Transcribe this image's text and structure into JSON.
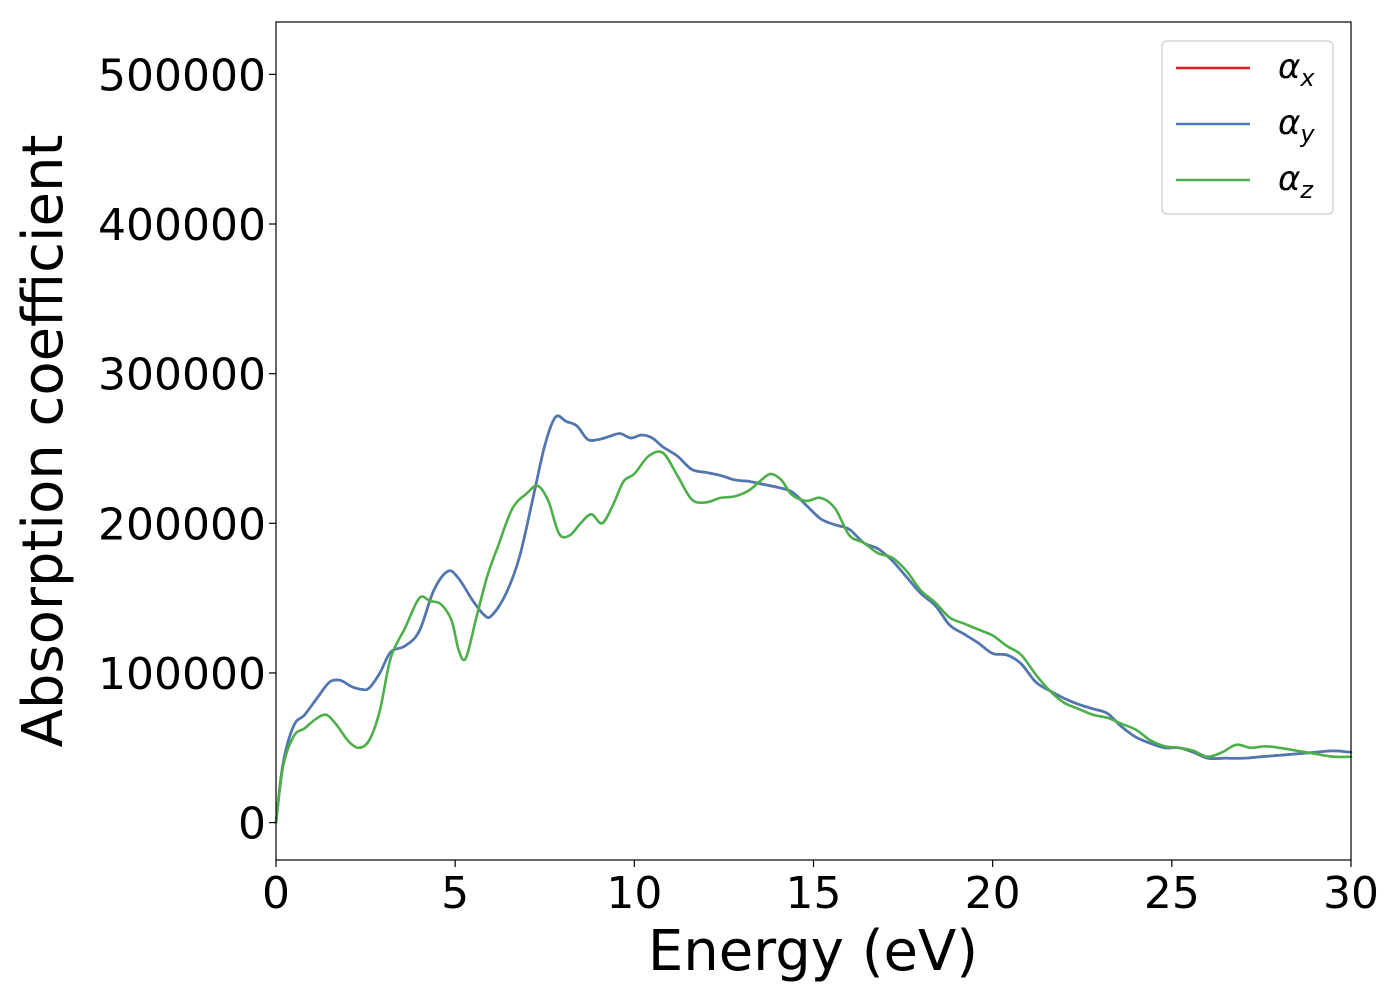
{
  "chart_data": {
    "type": "line",
    "title": "",
    "xlabel": "Energy (eV)",
    "ylabel": "Absorption coefficient",
    "xlim": [
      0,
      30
    ],
    "ylim": [
      -25000,
      535000
    ],
    "xticks": [
      0,
      5,
      10,
      15,
      20,
      25,
      30
    ],
    "yticks": [
      0,
      100000,
      200000,
      300000,
      400000,
      500000
    ],
    "grid": false,
    "legend_position": "top-right",
    "series": [
      {
        "name": "α",
        "subscript": "x",
        "color": "#e41a1c",
        "x": [
          0,
          0.2,
          0.5,
          0.8,
          1.2,
          1.5,
          1.8,
          2.1,
          2.4,
          2.6,
          2.9,
          3.2,
          3.6,
          4.0,
          4.4,
          4.8,
          5.1,
          5.5,
          5.8,
          6.0,
          6.4,
          6.8,
          7.2,
          7.5,
          7.8,
          8.1,
          8.4,
          8.7,
          9.0,
          9.3,
          9.6,
          9.9,
          10.2,
          10.5,
          10.8,
          11.2,
          11.6,
          12.0,
          12.4,
          12.8,
          13.2,
          13.6,
          14.0,
          14.4,
          14.8,
          15.2,
          15.6,
          16.0,
          16.4,
          16.8,
          17.2,
          17.6,
          18.0,
          18.4,
          18.8,
          19.2,
          19.6,
          20.0,
          20.4,
          20.8,
          21.2,
          21.6,
          22.0,
          22.4,
          22.8,
          23.2,
          23.6,
          24.0,
          24.4,
          24.8,
          25.2,
          25.6,
          26.0,
          26.5,
          27.0,
          27.5,
          28.0,
          28.5,
          29.0,
          29.5,
          30.0
        ],
        "y": [
          0,
          40000,
          65000,
          72000,
          85000,
          94000,
          95000,
          91000,
          89000,
          90000,
          100000,
          114000,
          118000,
          128000,
          155000,
          168000,
          163000,
          148000,
          139000,
          138000,
          152000,
          178000,
          220000,
          252000,
          271000,
          268000,
          265000,
          256000,
          256000,
          258000,
          260000,
          257000,
          259000,
          257000,
          251000,
          245000,
          236000,
          234000,
          232000,
          229000,
          228000,
          226000,
          224000,
          221000,
          212000,
          203000,
          199000,
          196000,
          187000,
          183000,
          175000,
          164000,
          153000,
          145000,
          132000,
          126000,
          120000,
          113000,
          112000,
          106000,
          94000,
          88000,
          83000,
          79000,
          76000,
          73000,
          64000,
          57000,
          53000,
          50000,
          50000,
          47000,
          43000,
          43000,
          43000,
          44000,
          45000,
          46000,
          47000,
          48000,
          47000
        ]
      },
      {
        "name": "α",
        "subscript": "y",
        "color": "#4a7ab5",
        "x": [
          0,
          0.2,
          0.5,
          0.8,
          1.2,
          1.5,
          1.8,
          2.1,
          2.4,
          2.6,
          2.9,
          3.2,
          3.6,
          4.0,
          4.4,
          4.8,
          5.1,
          5.5,
          5.8,
          6.0,
          6.4,
          6.8,
          7.2,
          7.5,
          7.8,
          8.1,
          8.4,
          8.7,
          9.0,
          9.3,
          9.6,
          9.9,
          10.2,
          10.5,
          10.8,
          11.2,
          11.6,
          12.0,
          12.4,
          12.8,
          13.2,
          13.6,
          14.0,
          14.4,
          14.8,
          15.2,
          15.6,
          16.0,
          16.4,
          16.8,
          17.2,
          17.6,
          18.0,
          18.4,
          18.8,
          19.2,
          19.6,
          20.0,
          20.4,
          20.8,
          21.2,
          21.6,
          22.0,
          22.4,
          22.8,
          23.2,
          23.6,
          24.0,
          24.4,
          24.8,
          25.2,
          25.6,
          26.0,
          26.5,
          27.0,
          27.5,
          28.0,
          28.5,
          29.0,
          29.5,
          30.0
        ],
        "y": [
          0,
          40000,
          65000,
          72000,
          85000,
          94000,
          95000,
          91000,
          89000,
          90000,
          100000,
          114000,
          118000,
          128000,
          155000,
          168000,
          163000,
          148000,
          139000,
          138000,
          152000,
          178000,
          220000,
          252000,
          271000,
          268000,
          265000,
          256000,
          256000,
          258000,
          260000,
          257000,
          259000,
          257000,
          251000,
          245000,
          236000,
          234000,
          232000,
          229000,
          228000,
          226000,
          224000,
          221000,
          212000,
          203000,
          199000,
          196000,
          187000,
          183000,
          175000,
          164000,
          153000,
          145000,
          132000,
          126000,
          120000,
          113000,
          112000,
          106000,
          94000,
          88000,
          83000,
          79000,
          76000,
          73000,
          64000,
          57000,
          53000,
          50000,
          50000,
          47000,
          43000,
          43000,
          43000,
          44000,
          45000,
          46000,
          47000,
          48000,
          47000
        ]
      },
      {
        "name": "α",
        "subscript": "z",
        "color": "#4daf4a",
        "x": [
          0,
          0.2,
          0.5,
          0.8,
          1.1,
          1.4,
          1.7,
          2.0,
          2.3,
          2.6,
          2.9,
          3.2,
          3.6,
          4.0,
          4.3,
          4.6,
          4.9,
          5.1,
          5.3,
          5.6,
          5.9,
          6.2,
          6.6,
          7.0,
          7.3,
          7.6,
          7.9,
          8.2,
          8.5,
          8.8,
          9.1,
          9.4,
          9.7,
          10.0,
          10.4,
          10.8,
          11.2,
          11.6,
          12.0,
          12.4,
          12.8,
          13.2,
          13.5,
          13.8,
          14.1,
          14.4,
          14.8,
          15.2,
          15.6,
          16.0,
          16.4,
          16.8,
          17.2,
          17.6,
          18.0,
          18.4,
          18.8,
          19.2,
          19.6,
          20.0,
          20.4,
          20.8,
          21.2,
          21.6,
          22.0,
          22.4,
          22.8,
          23.2,
          23.6,
          24.0,
          24.4,
          24.8,
          25.2,
          25.6,
          26.0,
          26.4,
          26.8,
          27.2,
          27.6,
          28.0,
          28.5,
          29.0,
          29.5,
          30.0
        ],
        "y": [
          0,
          38000,
          58000,
          63000,
          69000,
          72000,
          65000,
          55000,
          50000,
          55000,
          75000,
          110000,
          130000,
          150000,
          148000,
          146000,
          135000,
          115000,
          110000,
          138000,
          165000,
          185000,
          210000,
          220000,
          225000,
          215000,
          193000,
          192000,
          200000,
          206000,
          200000,
          212000,
          228000,
          233000,
          245000,
          247000,
          232000,
          216000,
          214000,
          217000,
          218000,
          222000,
          228000,
          233000,
          229000,
          219000,
          215000,
          217000,
          210000,
          192000,
          187000,
          180000,
          177000,
          168000,
          155000,
          147000,
          137000,
          133000,
          129000,
          125000,
          118000,
          112000,
          99000,
          88000,
          80000,
          76000,
          72000,
          70000,
          66000,
          62000,
          55000,
          51000,
          50000,
          48000,
          44000,
          47000,
          52000,
          50000,
          51000,
          50000,
          48000,
          46000,
          44000,
          44000
        ]
      }
    ]
  }
}
